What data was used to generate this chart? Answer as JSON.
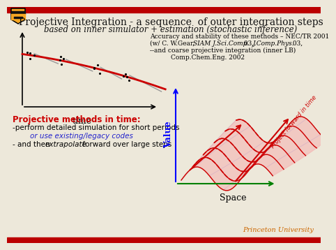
{
  "title": "Projective Integration - a sequence  of outer integration steps",
  "subtitle": "based on inner simulator + estimation (stochastic inference)",
  "header_bar_color": "#bb0000",
  "footer_bar_color": "#bb0000",
  "bg_color": "#ede8da",
  "title_color": "#111111",
  "subtitle_color": "#111111",
  "time_label": "time",
  "value_label": "Value",
  "space_label": "Space",
  "princeton_label": "Princeton University",
  "princeton_color": "#cc6600",
  "proj_methods_title": "Projective methods in time:",
  "proj_methods_color": "#cc0000",
  "bullet1": "-perform detailed simulation for short periods",
  "bullet2": "or use existing/legacy codes",
  "bullet2_color": "#2222cc",
  "bullet3_pre": "- and then ",
  "bullet3_italic": "extrapolate",
  "bullet3_post": " forward over large steps",
  "accuracy_line1": "Accuracy and stability of these methods – NEC/TR 2001",
  "accuracy_line2": "(w/ C. W.Gear,  SIAM J.Sci.Comp. 03, J.Comp.Phys. 03,",
  "accuracy_line3": "--and coarse projective integration (inner LB)",
  "accuracy_line4": "Comp.Chem.Eng. 2002",
  "project_forward_text": "Project forward in time",
  "red_color": "#cc0000",
  "blue_color": "#2222cc",
  "gray_color": "#999999",
  "pink_fill": "#f5b0b0",
  "light_blue_grid": "#aaaadd"
}
